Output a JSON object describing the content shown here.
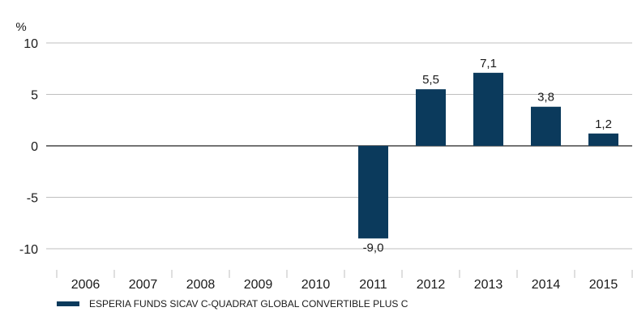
{
  "chart_data": {
    "type": "bar",
    "y_unit": "%",
    "categories": [
      "2006",
      "2007",
      "2008",
      "2009",
      "2010",
      "2011",
      "2012",
      "2013",
      "2014",
      "2015"
    ],
    "series": [
      {
        "name": "ESPERIA FUNDS SICAV C-QUADRAT GLOBAL CONVERTIBLE PLUS C",
        "values": [
          null,
          null,
          null,
          null,
          null,
          -9.0,
          5.5,
          7.1,
          3.8,
          1.2
        ],
        "data_labels": [
          "",
          "",
          "",
          "",
          "",
          "-9,0",
          "5,5",
          "7,1",
          "3,8",
          "1,2"
        ],
        "color": "#0b3a5c"
      }
    ],
    "yticks": [
      10,
      5,
      0,
      -5,
      -10
    ],
    "ytick_labels": [
      "10",
      "5",
      "0",
      "-5",
      "-10"
    ],
    "ylim": [
      -10,
      10
    ],
    "grid": true,
    "legend_position": "bottom-left"
  }
}
